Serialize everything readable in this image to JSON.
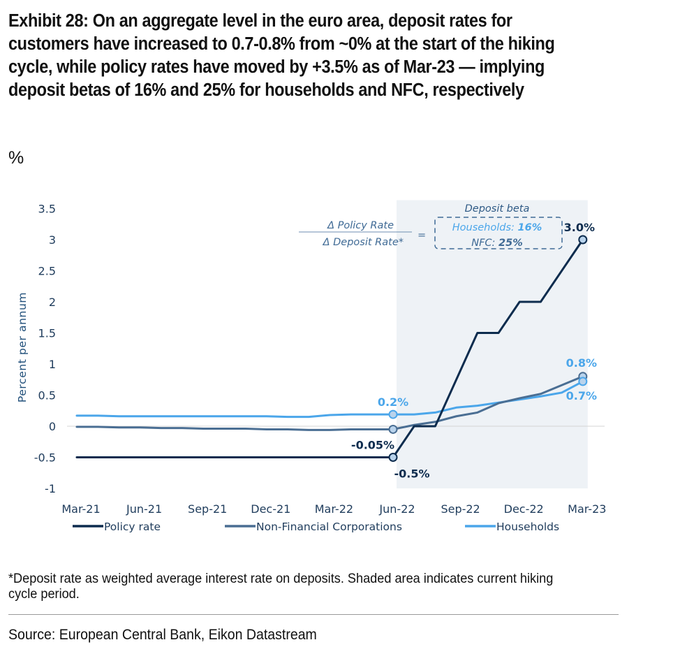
{
  "title": "Exhibit 28: On an aggregate level in the euro area, deposit rates for customers have increased to 0.7-0.8% from ~0% at the start of the hiking cycle, while policy rates have moved by +3.5% as of Mar-23 — implying deposit betas of 16% and 25% for households and NFC, respectively",
  "unit": "%",
  "footnote": "*Deposit rate as weighted average interest rate on deposits. Shaded area indicates current hiking cycle period.",
  "source": "Source: European Central Bank, Eikon Datastream",
  "annotation": {
    "numerator": "Δ Policy Rate",
    "denominator": "Δ Deposit Rate*",
    "equals": "=",
    "box_title": "Deposit beta",
    "households_label": "Households: ",
    "households_value": "16%",
    "nfc_label": "NFC: ",
    "nfc_value": "25%"
  },
  "chart_data": {
    "type": "line",
    "ylabel": "Percent per annum",
    "ylim": [
      -1,
      3.5
    ],
    "yticks": [
      "3.5",
      "3",
      "2.5",
      "2",
      "1.5",
      "1",
      "0.5",
      "0",
      "-0.5",
      "-1"
    ],
    "x_tick_labels": [
      "Mar-21",
      "Jun-21",
      "Sep-21",
      "Dec-21",
      "Mar-22",
      "Jun-22",
      "Sep-22",
      "Dec-22",
      "Mar-23"
    ],
    "x_months": [
      "Mar-21",
      "Apr-21",
      "May-21",
      "Jun-21",
      "Jul-21",
      "Aug-21",
      "Sep-21",
      "Oct-21",
      "Nov-21",
      "Dec-21",
      "Jan-22",
      "Feb-22",
      "Mar-22",
      "Apr-22",
      "May-22",
      "Jun-22",
      "Jul-22",
      "Aug-22",
      "Sep-22",
      "Oct-22",
      "Nov-22",
      "Dec-22",
      "Jan-23",
      "Feb-23",
      "Mar-23"
    ],
    "shaded_region": {
      "from": "Jun-22",
      "to": "Mar-23",
      "meaning": "current hiking cycle period"
    },
    "legend_position": "bottom",
    "series": [
      {
        "name": "Policy rate",
        "color": "#0d2c4e",
        "values": [
          -0.5,
          -0.5,
          -0.5,
          -0.5,
          -0.5,
          -0.5,
          -0.5,
          -0.5,
          -0.5,
          -0.5,
          -0.5,
          -0.5,
          -0.5,
          -0.5,
          -0.5,
          -0.5,
          0.0,
          0.0,
          0.75,
          1.5,
          1.5,
          2.0,
          2.0,
          2.5,
          3.0
        ],
        "points": [
          {
            "x": "Mar-21",
            "y": -0.5
          },
          {
            "x": "Jun-22",
            "y": -0.5
          },
          {
            "x": "Jul-22",
            "y": 0.0
          },
          {
            "x": "Aug-22",
            "y": 0.0
          },
          {
            "x": "Oct-22",
            "y": 1.5
          },
          {
            "x": "Nov-22",
            "y": 1.5
          },
          {
            "x": "Dec-22",
            "y": 2.0
          },
          {
            "x": "Jan-23",
            "y": 2.0
          },
          {
            "x": "Mar-23",
            "y": 3.0
          }
        ]
      },
      {
        "name": "Non-Financial Corporations",
        "color": "#4a6e93",
        "values": [
          -0.01,
          -0.01,
          -0.02,
          -0.02,
          -0.03,
          -0.03,
          -0.04,
          -0.04,
          -0.04,
          -0.05,
          -0.05,
          -0.06,
          -0.06,
          -0.05,
          -0.05,
          -0.05,
          0.02,
          0.07,
          0.16,
          0.22,
          0.37,
          0.45,
          0.52,
          0.66,
          0.8
        ]
      },
      {
        "name": "Households",
        "color": "#4ba6ea",
        "values": [
          0.17,
          0.17,
          0.16,
          0.16,
          0.16,
          0.16,
          0.16,
          0.16,
          0.16,
          0.16,
          0.15,
          0.15,
          0.18,
          0.19,
          0.19,
          0.19,
          0.19,
          0.22,
          0.3,
          0.33,
          0.38,
          0.43,
          0.48,
          0.54,
          0.72
        ]
      }
    ],
    "data_labels": [
      {
        "text": "3.0%",
        "series": "Policy rate",
        "x": "Mar-23",
        "y": 3.0
      },
      {
        "text": "-0.5%",
        "series": "Policy rate",
        "x": "Jun-22",
        "y": -0.5
      },
      {
        "text": "-0.05%",
        "series": "Non-Financial Corporations",
        "x": "Jun-22",
        "y": -0.05
      },
      {
        "text": "0.2%",
        "series": "Households",
        "x": "Jun-22",
        "y": 0.19
      },
      {
        "text": "0.8%",
        "series": "Non-Financial Corporations",
        "x": "Mar-23",
        "y": 0.8
      },
      {
        "text": "0.7%",
        "series": "Households",
        "x": "Mar-23",
        "y": 0.72
      }
    ]
  }
}
